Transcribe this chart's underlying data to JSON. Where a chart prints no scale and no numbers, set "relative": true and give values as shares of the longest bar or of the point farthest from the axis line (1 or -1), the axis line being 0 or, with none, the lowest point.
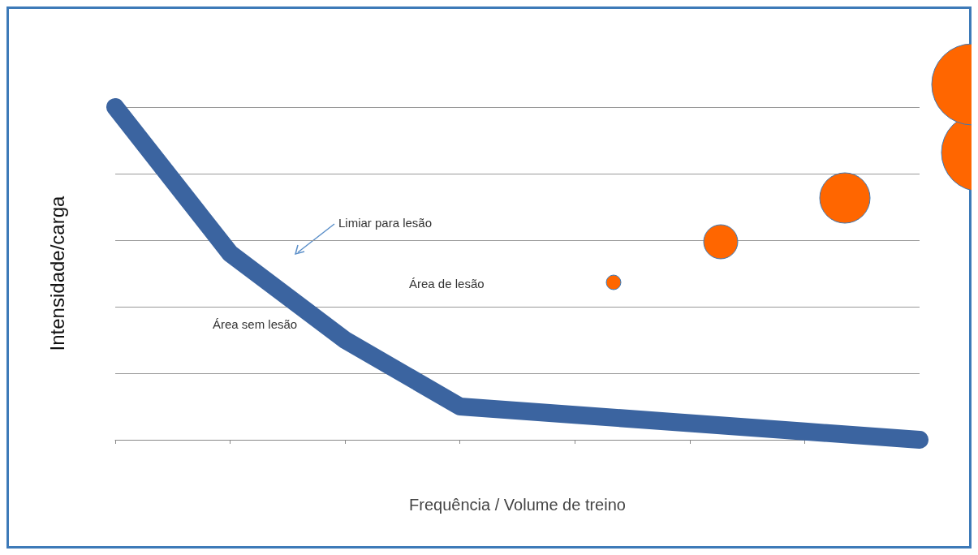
{
  "chart_data": {
    "type": "line",
    "relative": true,
    "xlabel": "Frequência / Volume de treino",
    "ylabel": "Intensidade/carga",
    "categories": [
      null,
      null,
      null,
      null,
      null,
      null,
      null,
      null
    ],
    "series": [
      {
        "color": "#3b64a0",
        "values": [
          1,
          0.56,
          0.3,
          0.1,
          0.075,
          0.05,
          0.025,
          0
        ]
      }
    ],
    "annotations": [
      "Limiar para lesão",
      "Área de lesão",
      "Área sem lesão"
    ],
    "grid": "y",
    "line_style": "solid"
  }
}
